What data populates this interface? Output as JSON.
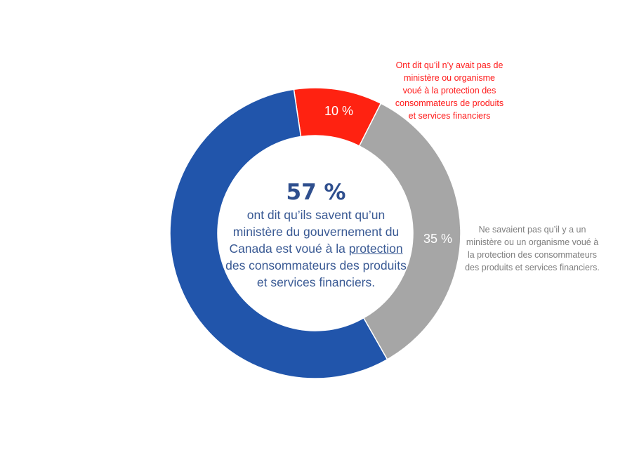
{
  "chart_data": {
    "type": "pie",
    "variant": "donut",
    "title": "",
    "slices": [
      {
        "label": "Savent qu'un ministère est voué à la protection",
        "value": 57,
        "color": "#2155AB",
        "display": ""
      },
      {
        "label": "Ont dit qu'il n'y avait pas de ministère",
        "value": 10,
        "color": "#FF2211",
        "display": "10 %"
      },
      {
        "label": "Ne savaient pas",
        "value": 35,
        "color": "#A6A6A6",
        "display": "35 %"
      }
    ],
    "start_angle_deg": 0,
    "order": [
      "10 %",
      "35 %",
      "57 %"
    ],
    "legend": "none"
  },
  "center": {
    "percent": "57 %",
    "line1": "ont dit qu’ils savent qu’un",
    "line2": "ministère du gouvernement du",
    "line3_prefix": "Canada est voué à la ",
    "line3_underlined": "protection",
    "line4": "des consommateurs des produits",
    "line5": "et services financiers."
  },
  "labels": {
    "red_pct": "10 %",
    "grey_pct": "35 %"
  },
  "callouts": {
    "red": [
      "Ont dit qu’il n’y avait pas de",
      "ministère ou organisme",
      "voué à  la protection des",
      "consommateurs de produits",
      "et services financiers"
    ],
    "grey": [
      "Ne savaient pas qu’il y a un",
      "ministère ou un organisme voué à",
      "la protection des consommateurs",
      "des produits et services financiers."
    ]
  },
  "colors": {
    "blue": "#2155AB",
    "red": "#FF2211",
    "grey": "#A6A6A6",
    "center_text": "#2F4F8E",
    "red_text": "#FF1A1A",
    "grey_text": "#7F7F7F"
  }
}
